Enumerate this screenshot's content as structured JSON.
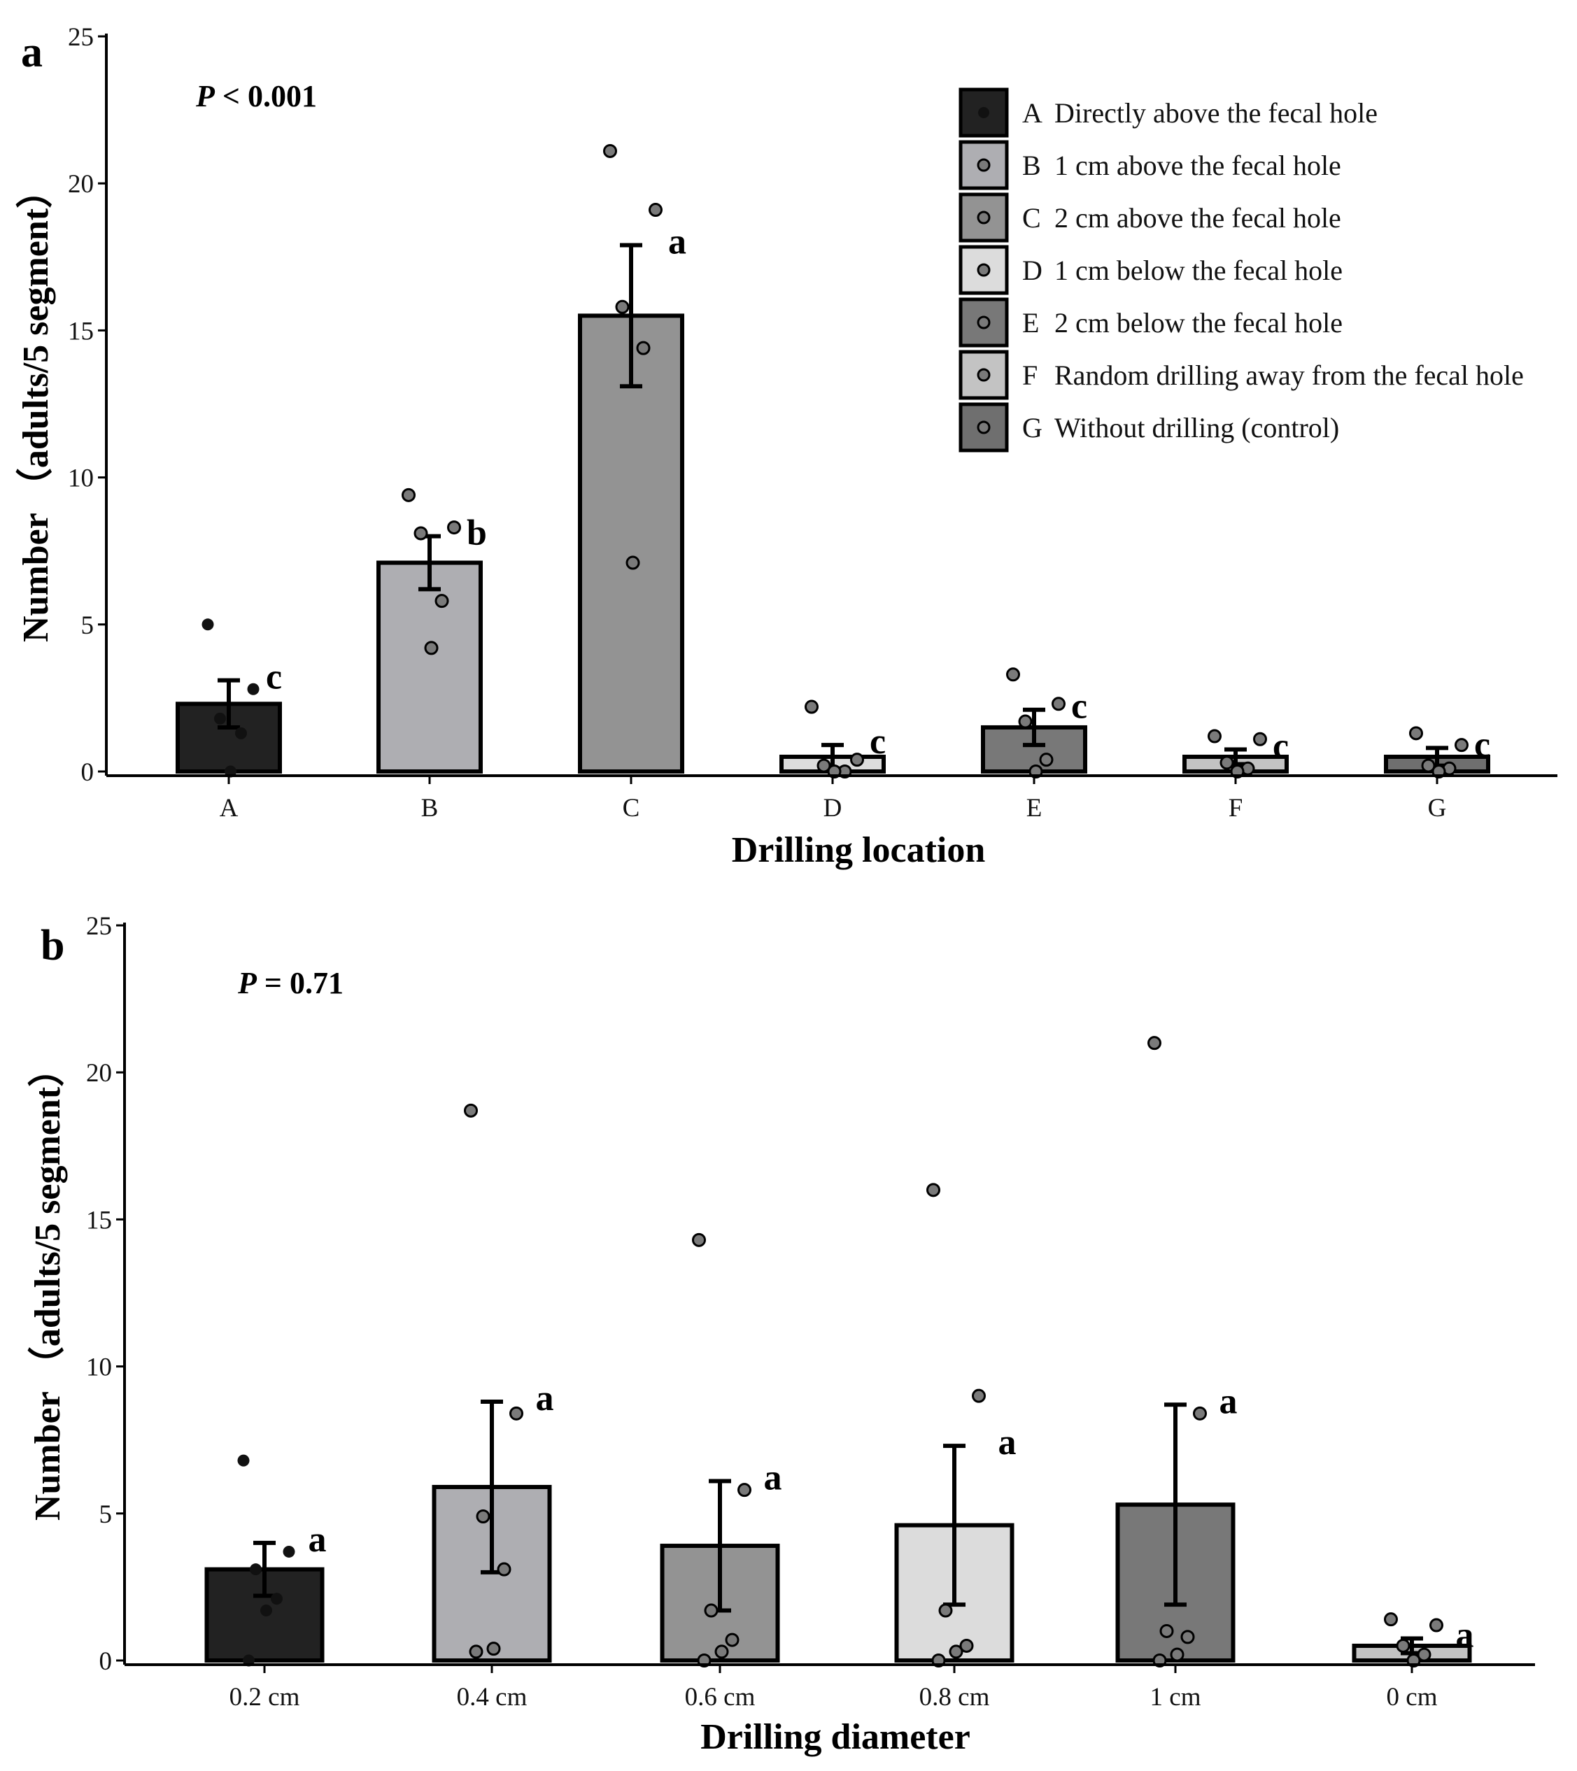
{
  "chart_data": [
    {
      "panel": "a",
      "type": "bar",
      "xlabel": "Drilling location",
      "ylabel": "Number （adults/5 segment）",
      "ylim": [
        0,
        25
      ],
      "yticks": [
        0,
        5,
        10,
        15,
        20,
        25
      ],
      "p_prefix": "P",
      "p_rest": " < 0.001",
      "categories": [
        "A",
        "B",
        "C",
        "D",
        "E",
        "F",
        "G"
      ],
      "values": [
        2.3,
        7.1,
        15.5,
        0.5,
        1.5,
        0.5,
        0.5
      ],
      "errors": [
        0.8,
        0.9,
        2.4,
        0.4,
        0.6,
        0.25,
        0.3
      ],
      "letters": [
        "c",
        "b",
        "a",
        "c",
        "c",
        "c",
        "c"
      ],
      "colors": [
        "#222222",
        "#aeaeb2",
        "#939393",
        "#dcdcdc",
        "#787878",
        "#c3c3c3",
        "#6f6f6f"
      ],
      "points": [
        [
          5.0,
          2.8,
          1.8,
          1.3,
          0.0
        ],
        [
          9.4,
          8.3,
          8.1,
          5.8,
          4.2
        ],
        [
          21.1,
          19.1,
          15.8,
          14.4,
          7.1
        ],
        [
          2.2,
          0.4,
          0.2,
          0.0,
          0.0
        ],
        [
          3.3,
          2.3,
          1.7,
          0.4,
          0.0
        ],
        [
          1.2,
          1.1,
          0.3,
          0.1,
          0.0
        ],
        [
          1.3,
          0.9,
          0.2,
          0.1,
          0.0
        ]
      ],
      "legend": [
        {
          "key": "A",
          "text": "Directly above the fecal hole"
        },
        {
          "key": "B",
          "text": "1 cm above the fecal hole"
        },
        {
          "key": "C",
          "text": "2 cm above the fecal hole"
        },
        {
          "key": "D",
          "text": "1 cm below the fecal hole"
        },
        {
          "key": "E",
          "text": "2 cm below the fecal hole"
        },
        {
          "key": "F",
          "text": "Random drilling away from the fecal hole"
        },
        {
          "key": "G",
          "text": "Without drilling (control)"
        }
      ]
    },
    {
      "panel": "b",
      "type": "bar",
      "xlabel": "Drilling diameter",
      "ylabel": "Number （adults/5 segment）",
      "ylim": [
        0,
        25
      ],
      "yticks": [
        0,
        5,
        10,
        15,
        20,
        25
      ],
      "p_prefix": "P",
      "p_rest": " = 0.71",
      "categories": [
        "0.2 cm",
        "0.4 cm",
        "0.6 cm",
        "0.8 cm",
        "1 cm",
        "0 cm"
      ],
      "values": [
        3.1,
        5.9,
        3.9,
        4.6,
        5.3,
        0.5
      ],
      "errors": [
        0.9,
        2.9,
        2.2,
        2.7,
        3.4,
        0.25
      ],
      "letters": [
        "a",
        "a",
        "a",
        "a",
        "a",
        "a"
      ],
      "colors": [
        "#222222",
        "#aeaeb2",
        "#939393",
        "#dcdcdc",
        "#787878",
        "#c3c3c3"
      ],
      "points": [
        [
          6.8,
          3.7,
          3.1,
          2.1,
          1.7,
          0.0
        ],
        [
          18.7,
          8.4,
          4.9,
          3.1,
          0.4,
          0.3
        ],
        [
          14.3,
          5.8,
          1.7,
          0.7,
          0.3,
          0.0
        ],
        [
          16.0,
          9.0,
          1.7,
          0.5,
          0.3,
          0.0
        ],
        [
          21.0,
          8.4,
          1.0,
          0.8,
          0.2,
          0.0
        ],
        [
          1.4,
          1.2,
          0.5,
          0.2,
          0.0
        ]
      ]
    }
  ]
}
